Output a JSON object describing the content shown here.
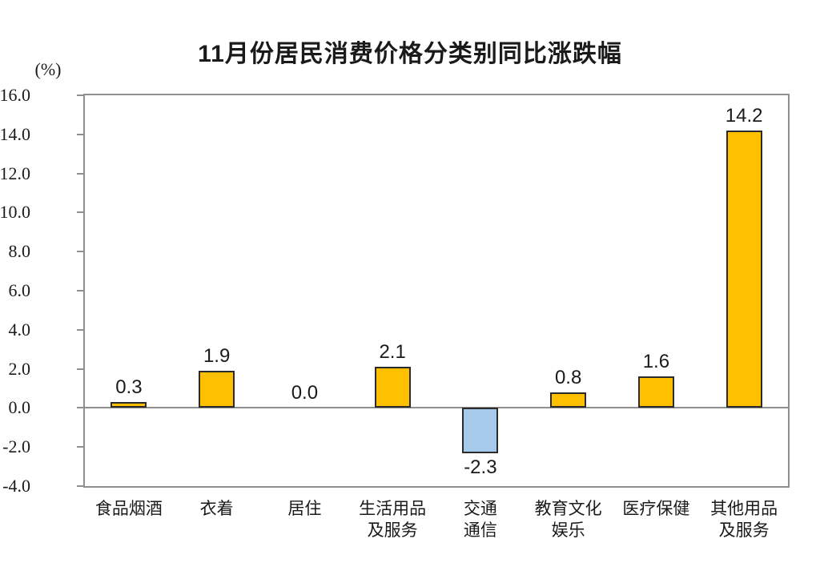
{
  "chart_data": {
    "type": "bar",
    "title": "11月份居民消费价格分类别同比涨跌幅",
    "unit_label": "(%)",
    "categories": [
      "食品烟酒",
      "衣着",
      "居住",
      "生活用品\n及服务",
      "交通\n通信",
      "教育文化\n娱乐",
      "医疗保健",
      "其他用品\n及服务"
    ],
    "values": [
      0.3,
      1.9,
      0.0,
      2.1,
      -2.3,
      0.8,
      1.6,
      14.2
    ],
    "xlabel": "",
    "ylabel": "(%)",
    "ylim": [
      -4.0,
      16.0
    ],
    "ytick_step": 2.0,
    "grid": false,
    "legend": false,
    "colors": {
      "positive_bar": "#FFC000",
      "negative_bar": "#A6CAEC",
      "bar_border": "#2b2b2b",
      "axis": "#8f8f8f",
      "text": "#1a1a1a"
    }
  }
}
